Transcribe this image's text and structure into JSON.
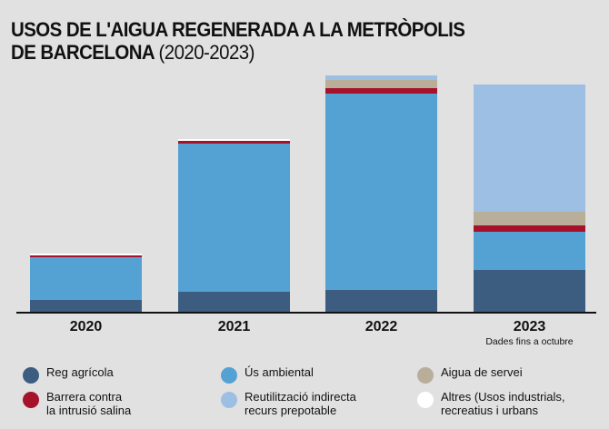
{
  "title": {
    "main_line1": "USOS DE L'AIGUA REGENERADA A LA METRÒPOLIS",
    "main_line2": "DE BARCELONA",
    "subtitle": "(2020-2023)"
  },
  "chart_data": {
    "type": "bar",
    "stacked": true,
    "title": "USOS DE L'AIGUA REGENERADA A LA METRÒPOLIS DE BARCELONA (2020-2023)",
    "xlabel": "",
    "ylabel": "",
    "grid": false,
    "units_note": "relative volume (no y-axis shown; values estimated from bar proportions)",
    "ylim": [
      0,
      270
    ],
    "categories": [
      "2020",
      "2021",
      "2022",
      "2023"
    ],
    "category_notes": [
      "",
      "",
      "",
      "Dades fins a octubre"
    ],
    "series": [
      {
        "name": "Reg agrícola",
        "color": "#3d5d80",
        "values": [
          13,
          22,
          24,
          46
        ]
      },
      {
        "name": "Ús ambiental",
        "color": "#54a2d4",
        "values": [
          47,
          163,
          216,
          42
        ]
      },
      {
        "name": "Barrera contra la intrusió salina",
        "color": "#a6122a",
        "values": [
          2,
          3,
          6,
          7
        ]
      },
      {
        "name": "Aigua de servei",
        "color": "#b8ae9a",
        "values": [
          0,
          0,
          9,
          15
        ]
      },
      {
        "name": "Reutilització indirecta recurs prepotable",
        "color": "#9dbfe4",
        "values": [
          0,
          0,
          5,
          140
        ]
      },
      {
        "name": "Altres (Usos industrials, recreatius i urbans",
        "color": "#ffffff",
        "values": [
          2,
          2,
          0,
          0
        ]
      }
    ],
    "legend_position": "bottom"
  },
  "legend": [
    {
      "label": "Reg agrícola",
      "color": "#3d5d80"
    },
    {
      "label": "Barrera contra\nla intrusió salina",
      "color": "#a6122a"
    },
    {
      "label": "Ús ambiental",
      "color": "#54a2d4"
    },
    {
      "label": "Reutilització indirecta\nrecurs prepotable",
      "color": "#9dbfe4"
    },
    {
      "label": "Aigua de servei",
      "color": "#b8ae9a"
    },
    {
      "label": "Altres (Usos industrials,\nrecreatius i urbans",
      "color": "#ffffff"
    }
  ]
}
